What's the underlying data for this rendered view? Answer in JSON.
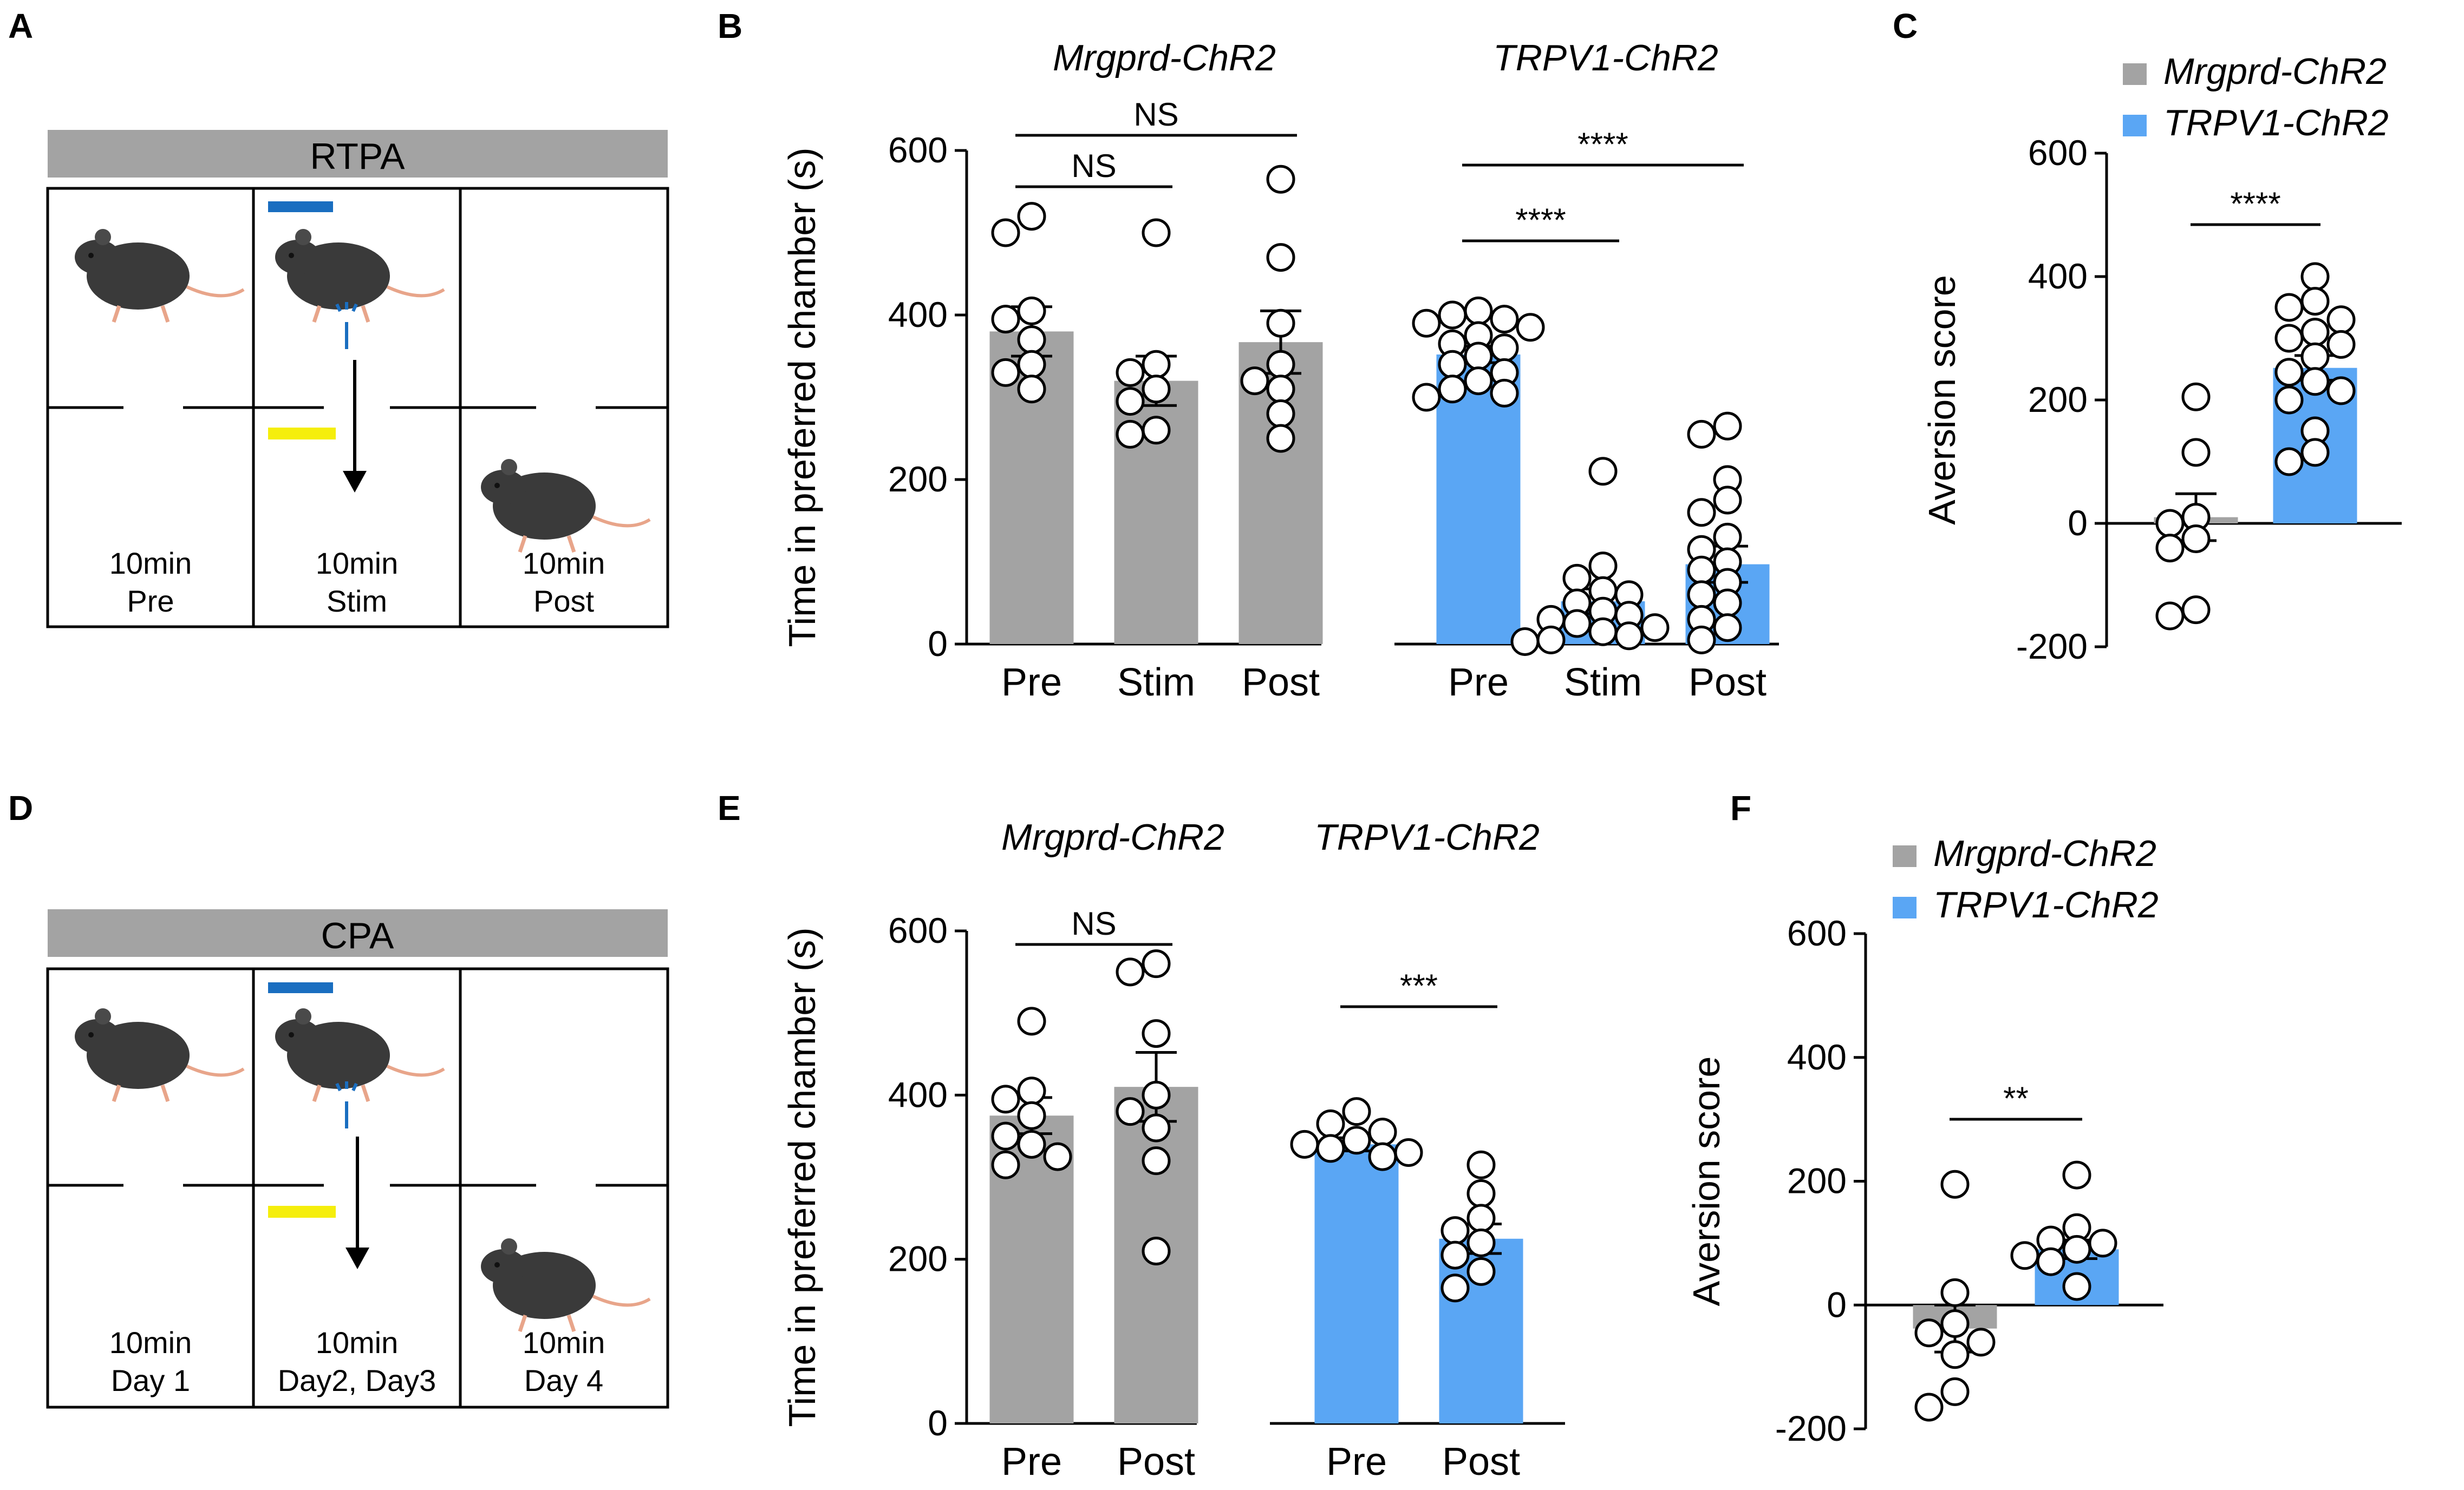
{
  "figure": {
    "panel_letters": [
      "A",
      "B",
      "C",
      "D",
      "E",
      "F"
    ],
    "colors": {
      "mrgprd": "#a3a3a3",
      "trpv1": "#5aa6f4",
      "blue_light": "#1a6ec0",
      "yellow_light": "#f5ee0c",
      "mouse": "#3a3a3a",
      "header_bar": "#a3a3a3"
    }
  },
  "schematics": [
    {
      "letter": "A",
      "title": "RTPA",
      "compartments": [
        {
          "line1": "10min",
          "line2": "Pre"
        },
        {
          "line1": "10min",
          "line2": "Stim"
        },
        {
          "line1": "10min",
          "line2": "Post"
        }
      ],
      "icons": [
        "mouse-icon",
        "blue-light-bar",
        "optic-fiber-icon",
        "yellow-light-bar",
        "down-arrow-icon"
      ]
    },
    {
      "letter": "D",
      "title": "CPA",
      "compartments": [
        {
          "line1": "10min",
          "line2": "Day 1"
        },
        {
          "line1": "10min",
          "line2": "Day2, Day3"
        },
        {
          "line1": "10min",
          "line2": "Day 4"
        }
      ],
      "icons": [
        "mouse-icon",
        "blue-light-bar",
        "optic-fiber-icon",
        "yellow-light-bar",
        "down-arrow-icon"
      ]
    }
  ],
  "chart_data": [
    {
      "panel": "B",
      "type": "bar",
      "ylabel": "Time in preferred chamber (s)",
      "ylim": [
        0,
        600
      ],
      "yticks": [
        0,
        200,
        400,
        600
      ],
      "groups": [
        {
          "name": "Mrgprd-ChR2",
          "color": "mrgprd",
          "bars": [
            {
              "label": "Pre",
              "mean": 380,
              "sem": 30,
              "points": [
                520,
                500,
                405,
                395,
                370,
                340,
                330,
                310
              ]
            },
            {
              "label": "Stim",
              "mean": 320,
              "sem": 30,
              "points": [
                500,
                340,
                330,
                310,
                295,
                260,
                255
              ]
            },
            {
              "label": "Post",
              "mean": 367,
              "sem": 38,
              "points": [
                565,
                470,
                390,
                340,
                320,
                310,
                280,
                250
              ]
            }
          ],
          "comparisons": [
            {
              "from": 0,
              "to": 1,
              "label": "NS"
            },
            {
              "from": 0,
              "to": 2,
              "label": "NS"
            }
          ]
        },
        {
          "name": "TRPV1-ChR2",
          "color": "trpv1",
          "bars": [
            {
              "label": "Pre",
              "mean": 352,
              "sem": 10,
              "points": [
                405,
                400,
                395,
                390,
                385,
                375,
                365,
                360,
                350,
                340,
                330,
                320,
                310,
                305,
                300
              ]
            },
            {
              "label": "Stim",
              "mean": 52,
              "sem": 15,
              "points": [
                210,
                95,
                80,
                65,
                60,
                50,
                40,
                35,
                30,
                25,
                20,
                15,
                10,
                5,
                3
              ]
            },
            {
              "label": "Post",
              "mean": 97,
              "sem": 22,
              "points": [
                265,
                255,
                200,
                175,
                160,
                130,
                115,
                100,
                90,
                75,
                60,
                50,
                30,
                20,
                5
              ]
            }
          ],
          "comparisons": [
            {
              "from": 0,
              "to": 1,
              "label": "****"
            },
            {
              "from": 0,
              "to": 2,
              "label": "****"
            }
          ]
        }
      ]
    },
    {
      "panel": "C",
      "type": "bar",
      "ylabel": "Aversion score",
      "ylim": [
        -200,
        600
      ],
      "yticks": [
        -200,
        0,
        200,
        400,
        600
      ],
      "legend": [
        {
          "label": "Mrgprd-ChR2",
          "color": "mrgprd"
        },
        {
          "label": "TRPV1-ChR2",
          "color": "trpv1"
        }
      ],
      "bars": [
        {
          "label": "Mrgprd-ChR2",
          "color": "mrgprd",
          "mean": 10,
          "sem": 38,
          "points": [
            205,
            115,
            10,
            0,
            -25,
            -40,
            -140,
            -150
          ]
        },
        {
          "label": "TRPV1-ChR2",
          "color": "trpv1",
          "mean": 252,
          "sem": 20,
          "points": [
            400,
            360,
            350,
            330,
            310,
            300,
            290,
            270,
            245,
            230,
            215,
            200,
            150,
            115,
            100
          ]
        }
      ],
      "comparisons": [
        {
          "from": 0,
          "to": 1,
          "label": "****"
        }
      ]
    },
    {
      "panel": "E",
      "type": "bar",
      "ylabel": "Time in preferred chamber (s)",
      "ylim": [
        0,
        600
      ],
      "yticks": [
        0,
        200,
        400,
        600
      ],
      "groups": [
        {
          "name": "Mrgprd-ChR2",
          "color": "mrgprd",
          "bars": [
            {
              "label": "Pre",
              "mean": 375,
              "sem": 22,
              "points": [
                490,
                405,
                395,
                375,
                350,
                340,
                325,
                315
              ]
            },
            {
              "label": "Post",
              "mean": 410,
              "sem": 42,
              "points": [
                560,
                550,
                475,
                400,
                380,
                360,
                320,
                210
              ]
            }
          ],
          "comparisons": [
            {
              "from": 0,
              "to": 1,
              "label": "NS"
            }
          ]
        },
        {
          "name": "TRPV1-ChR2",
          "color": "trpv1",
          "bars": [
            {
              "label": "Pre",
              "mean": 340,
              "sem": 8,
              "points": [
                380,
                365,
                355,
                345,
                340,
                335,
                330,
                325
              ]
            },
            {
              "label": "Post",
              "mean": 225,
              "sem": 18,
              "points": [
                315,
                280,
                250,
                235,
                220,
                205,
                185,
                165
              ]
            }
          ],
          "comparisons": [
            {
              "from": 0,
              "to": 1,
              "label": "***"
            }
          ]
        }
      ]
    },
    {
      "panel": "F",
      "type": "bar",
      "ylabel": "Aversion score",
      "ylim": [
        -200,
        600
      ],
      "yticks": [
        -200,
        0,
        200,
        400,
        600
      ],
      "legend": [
        {
          "label": "Mrgprd-ChR2",
          "color": "mrgprd"
        },
        {
          "label": "TRPV1-ChR2",
          "color": "trpv1"
        }
      ],
      "bars": [
        {
          "label": "Mrgprd-ChR2",
          "color": "mrgprd",
          "mean": -38,
          "sem": 38,
          "points": [
            195,
            20,
            -30,
            -45,
            -60,
            -80,
            -140,
            -165
          ]
        },
        {
          "label": "TRPV1-ChR2",
          "color": "trpv1",
          "mean": 90,
          "sem": 15,
          "points": [
            210,
            125,
            105,
            100,
            90,
            80,
            70,
            30
          ]
        }
      ],
      "comparisons": [
        {
          "from": 0,
          "to": 1,
          "label": "**"
        }
      ]
    }
  ]
}
